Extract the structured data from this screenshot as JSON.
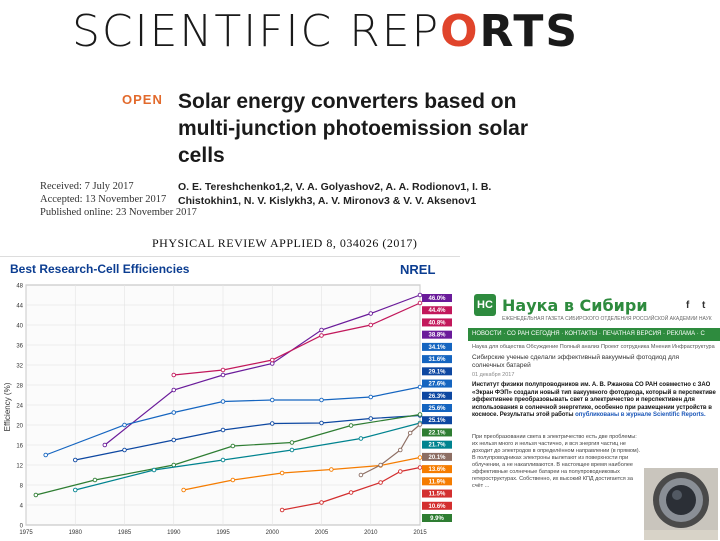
{
  "journal": {
    "logo_part1": "SCIENTIFIC REP",
    "logo_gear": "O",
    "logo_part2": "RTS",
    "open_label": "OPEN",
    "title": "Solar energy converters based on multi-junction photoemission solar cells",
    "received": "Received: 7 July 2017",
    "accepted": "Accepted: 13 November 2017",
    "published": "Published online: 23 November 2017",
    "authors": "O. E. Tereshchenko1,2, V. A. Golyashov2, A. A. Rodionov1, I. B. Chistokhin1, N. V. Kislykh3, A. V. Mironov3 & V. V. Aksenov1",
    "pra_citation": "PHYSICAL REVIEW APPLIED 8, 034026 (2017)"
  },
  "chart_data": {
    "type": "line",
    "title": "Best Research-Cell Efficiencies",
    "logo": "NREL",
    "ylabel": "Efficiency (%)",
    "ylim": [
      0,
      48
    ],
    "xlim": [
      1975,
      2015
    ],
    "y_ticks": [
      0,
      4,
      8,
      12,
      16,
      20,
      24,
      28,
      32,
      36,
      40,
      44,
      48
    ],
    "x_ticks": [
      "1975",
      "1980",
      "1985",
      "1990",
      "1995",
      "2000",
      "2005",
      "2010",
      "2015"
    ],
    "series": [
      {
        "color": "#6a1b9a",
        "x": [
          1983,
          1990,
          1995,
          2000,
          2005,
          2010,
          2015
        ],
        "y": [
          16,
          27,
          30,
          32.3,
          39,
          42.3,
          46
        ]
      },
      {
        "color": "#c2185b",
        "x": [
          1990,
          1995,
          2000,
          2005,
          2010,
          2015
        ],
        "y": [
          30,
          31,
          33,
          37.9,
          40,
          44.4
        ]
      },
      {
        "color": "#1565c0",
        "x": [
          1977,
          1985,
          1990,
          1995,
          2000,
          2005,
          2010,
          2015
        ],
        "y": [
          14,
          20,
          22.5,
          24.7,
          25,
          25,
          25.6,
          27.6
        ]
      },
      {
        "color": "#0d47a1",
        "x": [
          1980,
          1985,
          1990,
          1995,
          2000,
          2005,
          2010,
          2015
        ],
        "y": [
          13,
          15,
          17,
          19,
          20.3,
          20.4,
          21.3,
          21.9
        ]
      },
      {
        "color": "#2e7d32",
        "x": [
          1976,
          1982,
          1990,
          1996,
          2002,
          2008,
          2015
        ],
        "y": [
          6,
          9,
          12,
          15.8,
          16.5,
          19.9,
          22.1
        ]
      },
      {
        "color": "#00838f",
        "x": [
          1980,
          1988,
          1995,
          2002,
          2009,
          2015
        ],
        "y": [
          7,
          11,
          13,
          15,
          17.3,
          20.4
        ]
      },
      {
        "color": "#f57c00",
        "x": [
          1991,
          1996,
          2001,
          2006,
          2011,
          2015
        ],
        "y": [
          7,
          9,
          10.4,
          11.1,
          11.9,
          13.5
        ]
      },
      {
        "color": "#d32f2f",
        "x": [
          2001,
          2005,
          2008,
          2011,
          2013,
          2015
        ],
        "y": [
          3,
          4.5,
          6.5,
          8.5,
          10.7,
          11.5
        ]
      },
      {
        "color": "#8d6e63",
        "x": [
          2009,
          2011,
          2013,
          2014,
          2015
        ],
        "y": [
          10,
          12,
          15,
          18.4,
          20.1
        ]
      }
    ],
    "right_labels": [
      "46.0%",
      "44.4%",
      "40.8%",
      "38.8%",
      "34.1%",
      "31.6%",
      "29.1%",
      "27.6%",
      "26.3%",
      "25.6%",
      "25.1%",
      "22.1%",
      "21.7%",
      "20.1%",
      "13.6%",
      "11.9%",
      "11.5%",
      "10.6%",
      "9.9%"
    ]
  },
  "nauka": {
    "emblem": "НС",
    "name": "Наука в Сибири",
    "subtitle": "ЕЖЕНЕДЕЛЬНАЯ ГАЗЕТА СИБИРСКОГО ОТДЕЛЕНИЯ РОССИЙСКОЙ АКАДЕМИИ НАУК",
    "social_f": "f",
    "social_t": "t",
    "nav": "НОВОСТИ · СО РАН СЕГОДНЯ · КОНТАКТЫ · ПЕЧАТНАЯ ВЕРСИЯ · РЕКЛАМА · С",
    "subnav": "Наука для общества   Обсуждение   Полный анализ   Проект сотрудника   Мнения   Инфраструктура",
    "headline": "Сибирские ученые сделали эффективный вакуумный фотодиод для солнечных батарей",
    "date": "01 декабря 2017",
    "lead": "Институт физики полупроводников им. А. В. Ржанова СО РАН совместно с ЗАО «Экран ФЭП» создали новый тип вакуумного фотодиода, который в перспективе эффективнее преобразовывать свет в электричество и перспективен для использования в солнечной энергетике, особенно при размещении устройств в космосе. Результаты этой работы",
    "lead_link": "опубликованы в журнале Scientific Reports.",
    "body": "При преобразовании света в электричество есть две проблемы: их нельзя много и нельзя частично, и вся энергия частиц не доходит до электродов в определённом направлении (в прямом). В полупроводниках электроны вылетают из поверхности при облучении, а не накапливаются. В настоящее время наиболее эффективные солнечные батареи на полупроводниковых гетероструктурах. Собственно, их высокий КПД достигается за счёт ..."
  }
}
